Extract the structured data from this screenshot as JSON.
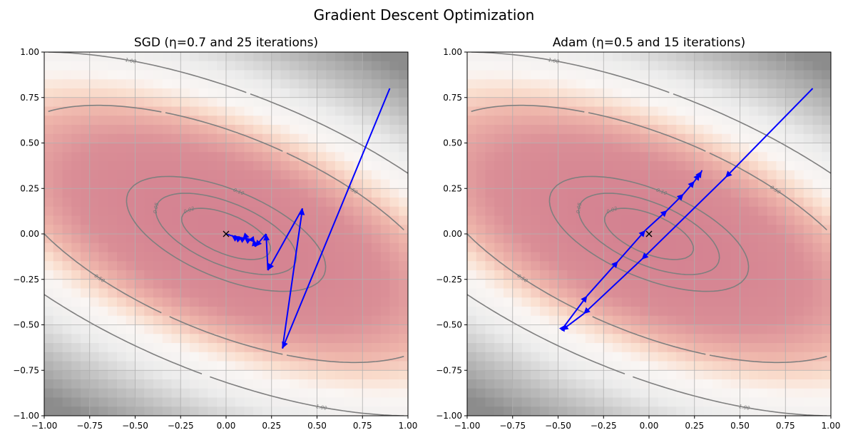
{
  "figure": {
    "suptitle": "Gradient Descent Optimization"
  },
  "chart_data": [
    {
      "type": "line",
      "title": "SGD (η=0.7 and 25 iterations)",
      "xlim": [
        -1.0,
        1.0
      ],
      "ylim": [
        -1.0,
        1.0
      ],
      "xticks": [
        -1.0,
        -0.75,
        -0.5,
        -0.25,
        0.0,
        0.25,
        0.5,
        0.75,
        1.0
      ],
      "yticks": [
        -1.0,
        -0.75,
        -0.5,
        -0.25,
        0.0,
        0.25,
        0.5,
        0.75,
        1.0
      ],
      "xtick_labels": [
        "−1.00",
        "−0.75",
        "−0.50",
        "−0.25",
        "0.00",
        "0.25",
        "0.50",
        "0.75",
        "1.00"
      ],
      "ytick_labels": [
        "−1.00",
        "−0.75",
        "−0.50",
        "−0.25",
        "0.00",
        "0.25",
        "0.50",
        "0.75",
        "1.00"
      ],
      "grid": true,
      "background": "heatmap",
      "contour_levels": [
        0.02,
        0.05,
        0.1,
        0.5,
        1.0
      ],
      "contour_labels": [
        "0.02",
        "0.05",
        "0.10",
        "0.50",
        "1.00"
      ],
      "minimum_marker": {
        "x": 0.0,
        "y": 0.0,
        "symbol": "x"
      },
      "path_color": "#0000ff",
      "path": [
        [
          0.9,
          0.8
        ],
        [
          0.31,
          -0.63
        ],
        [
          0.42,
          0.14
        ],
        [
          0.23,
          -0.2
        ],
        [
          0.22,
          0.0
        ],
        [
          0.16,
          -0.07
        ],
        [
          0.15,
          -0.03
        ],
        [
          0.12,
          -0.035
        ],
        [
          0.1,
          -0.02
        ],
        [
          0.09,
          -0.03
        ],
        [
          0.07,
          -0.015
        ],
        [
          0.06,
          -0.02
        ],
        [
          0.05,
          -0.01
        ],
        [
          0.04,
          -0.015
        ],
        [
          0.03,
          -0.008
        ],
        [
          0.025,
          -0.01
        ],
        [
          0.02,
          -0.005
        ],
        [
          0.015,
          -0.006
        ],
        [
          0.01,
          -0.003
        ],
        [
          0.008,
          -0.004
        ],
        [
          0.005,
          -0.002
        ],
        [
          0.004,
          -0.002
        ],
        [
          0.002,
          -0.001
        ],
        [
          0.001,
          -0.001
        ],
        [
          0.0,
          0.0
        ]
      ]
    },
    {
      "type": "line",
      "title": "Adam (η=0.5 and 15 iterations)",
      "xlim": [
        -1.0,
        1.0
      ],
      "ylim": [
        -1.0,
        1.0
      ],
      "xticks": [
        -1.0,
        -0.75,
        -0.5,
        -0.25,
        0.0,
        0.25,
        0.5,
        0.75,
        1.0
      ],
      "yticks": [
        -1.0,
        -0.75,
        -0.5,
        -0.25,
        0.0,
        0.25,
        0.5,
        0.75,
        1.0
      ],
      "xtick_labels": [
        "−1.00",
        "−0.75",
        "−0.50",
        "−0.25",
        "0.00",
        "0.25",
        "0.50",
        "0.75",
        "1.00"
      ],
      "ytick_labels": [
        "−1.00",
        "−0.75",
        "−0.50",
        "−0.25",
        "0.00",
        "0.25",
        "0.50",
        "0.75",
        "1.00"
      ],
      "grid": true,
      "background": "heatmap",
      "contour_levels": [
        0.02,
        0.05,
        0.1,
        0.5,
        1.0
      ],
      "contour_labels": [
        "0.02",
        "0.05",
        "0.10",
        "0.50",
        "1.00"
      ],
      "minimum_marker": {
        "x": 0.0,
        "y": 0.0,
        "symbol": "x"
      },
      "path_color": "#0000ff",
      "path": [
        [
          0.9,
          0.8
        ],
        [
          0.42,
          0.31
        ],
        [
          -0.04,
          -0.14
        ],
        [
          -0.36,
          -0.44
        ],
        [
          -0.48,
          -0.53
        ],
        [
          -0.46,
          -0.5
        ],
        [
          -0.34,
          -0.34
        ],
        [
          -0.17,
          -0.15
        ],
        [
          -0.02,
          0.02
        ],
        [
          0.1,
          0.13
        ],
        [
          0.19,
          0.22
        ],
        [
          0.25,
          0.29
        ],
        [
          0.28,
          0.33
        ],
        [
          0.29,
          0.345
        ],
        [
          0.29,
          0.35
        ]
      ]
    }
  ]
}
